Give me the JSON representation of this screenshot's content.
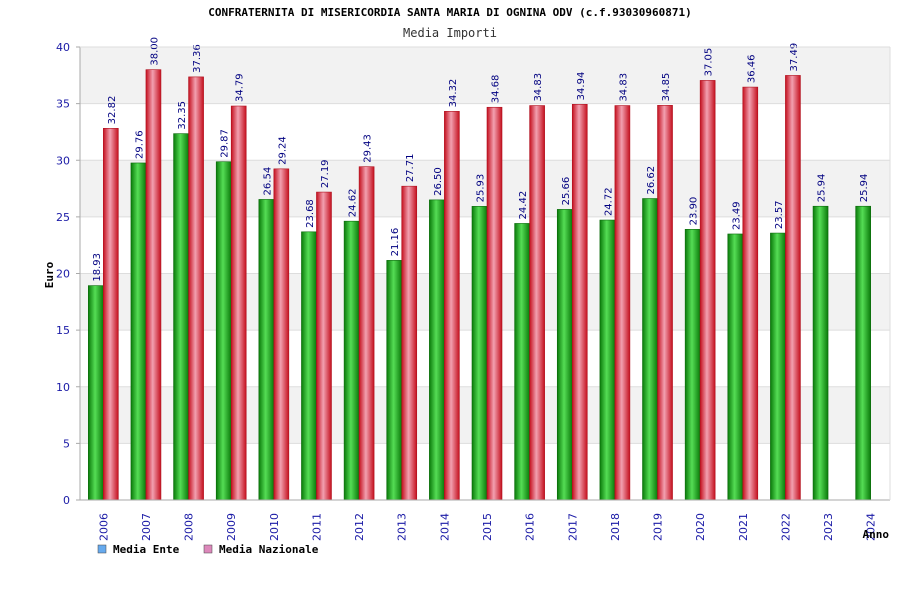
{
  "chart_data": {
    "type": "bar",
    "title": "CONFRATERNITA DI MISERICORDIA SANTA MARIA DI OGNINA ODV (c.f.93030960871)",
    "subtitle": "Media Importi",
    "xlabel": "Anno",
    "ylabel": "Euro",
    "ylim": [
      0,
      40
    ],
    "yticks": [
      0,
      5,
      10,
      15,
      20,
      25,
      30,
      35,
      40
    ],
    "grid": true,
    "legend_position": "bottom-left",
    "categories": [
      "2006",
      "2007",
      "2008",
      "2009",
      "2010",
      "2011",
      "2012",
      "2013",
      "2014",
      "2015",
      "2016",
      "2017",
      "2018",
      "2019",
      "2020",
      "2021",
      "2022",
      "2023",
      "2024"
    ],
    "series": [
      {
        "name": "Media Ente",
        "color": "#1aa01a",
        "legend_color": "#66aaee",
        "values": [
          18.93,
          29.76,
          32.35,
          29.87,
          26.54,
          23.68,
          24.62,
          21.16,
          26.5,
          25.93,
          24.42,
          25.66,
          24.72,
          26.62,
          23.9,
          23.49,
          23.57,
          25.94,
          25.94
        ],
        "labels": [
          "18.93",
          "29.76",
          "32.35",
          "29.87",
          "26.54",
          "23.68",
          "24.62",
          "21.16",
          "26.50",
          "25.93",
          "24.42",
          "25.66",
          "24.72",
          "26.62",
          "23.90",
          "23.49",
          "23.57",
          "25.94",
          "25.94"
        ]
      },
      {
        "name": "Media Nazionale",
        "color": "#e01a2a",
        "legend_color": "#dd88bb",
        "values": [
          32.82,
          38.0,
          37.36,
          34.79,
          29.24,
          27.19,
          29.43,
          27.71,
          34.32,
          34.68,
          34.83,
          34.94,
          34.83,
          34.85,
          37.05,
          36.46,
          37.49,
          null,
          null
        ],
        "labels": [
          "32.82",
          "38.00",
          "37.36",
          "34.79",
          "29.24",
          "27.19",
          "29.43",
          "27.71",
          "34.32",
          "34.68",
          "34.83",
          "34.94",
          "34.83",
          "34.85",
          "37.05",
          "36.46",
          "37.49",
          null,
          null
        ]
      }
    ]
  }
}
